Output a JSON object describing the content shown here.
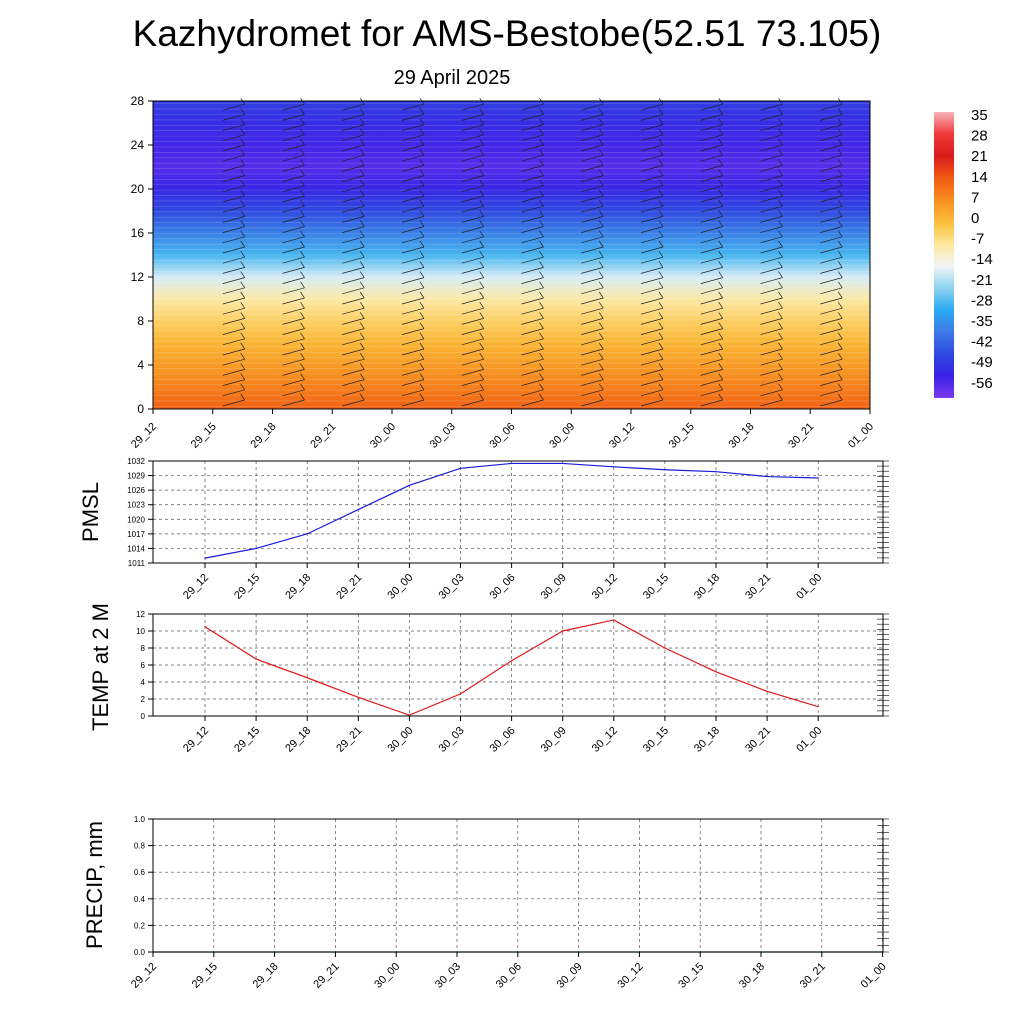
{
  "header": {
    "title": "Kazhydromet for AMS-Bestobe(52.51 73.105)",
    "date": "29 April 2025"
  },
  "chart_data": [
    {
      "type": "heatmap",
      "title": "",
      "xlabel": "",
      "ylabel": "",
      "x_ticks": [
        "29_12",
        "29_15",
        "29_18",
        "29_21",
        "30_00",
        "30_03",
        "30_06",
        "30_09",
        "30_12",
        "30_15",
        "30_18",
        "30_21",
        "01_00"
      ],
      "y_ticks": [
        "0",
        "4",
        "8",
        "12",
        "16",
        "20",
        "24",
        "28"
      ],
      "ylim": [
        0,
        28
      ],
      "colorbar": {
        "labels": [
          "35",
          "28",
          "21",
          "14",
          "7",
          "0",
          "-7",
          "-14",
          "-21",
          "-28",
          "-35",
          "-42",
          "-49",
          "-56"
        ],
        "colors": [
          "#f7b3b8",
          "#ef3a3a",
          "#d81a1a",
          "#f05a14",
          "#f78f1f",
          "#fbbd3a",
          "#fde79a",
          "#f3f6f8",
          "#8fd3f0",
          "#2aaaf0",
          "#3d7ae6",
          "#2f4ae0",
          "#3a22e6",
          "#7a3cf0"
        ]
      },
      "temperature_profile": {
        "heights": [
          0,
          2,
          4,
          6,
          8,
          10,
          12,
          14,
          16,
          18,
          20,
          22,
          24,
          26,
          28
        ],
        "values": [
          13,
          9,
          5,
          1,
          -3,
          -8,
          -16,
          -26,
          -34,
          -42,
          -48,
          -52,
          -50,
          -47,
          -44
        ]
      },
      "wind_barbs": true
    },
    {
      "type": "line",
      "title": "",
      "xlabel": "",
      "ylabel": "PMSL",
      "categories": [
        "29_12",
        "29_15",
        "29_18",
        "29_21",
        "30_00",
        "30_03",
        "30_06",
        "30_09",
        "30_12",
        "30_15",
        "30_18",
        "30_21",
        "01_00"
      ],
      "y_ticks": [
        "1032",
        "1029",
        "1026",
        "1023",
        "1020",
        "1017",
        "1014",
        "1011"
      ],
      "ylim": [
        1011,
        1032
      ],
      "series": [
        {
          "color": "#1a1adc",
          "values": [
            1012,
            1014,
            1017,
            1022,
            1027,
            1030.5,
            1031.5,
            1031.5,
            1030.8,
            1030.2,
            1029.8,
            1028.8,
            1028.5
          ]
        }
      ]
    },
    {
      "type": "line",
      "title": "",
      "xlabel": "",
      "ylabel": "TEMP at 2 M",
      "categories": [
        "29_12",
        "29_15",
        "29_18",
        "29_21",
        "30_00",
        "30_03",
        "30_06",
        "30_09",
        "30_12",
        "30_15",
        "30_18",
        "30_21",
        "01_00"
      ],
      "y_ticks": [
        "12",
        "10",
        "8",
        "6",
        "4",
        "2",
        "0"
      ],
      "ylim": [
        0,
        12
      ],
      "series": [
        {
          "color": "#e01818",
          "values": [
            10.5,
            6.7,
            4.5,
            2.2,
            0.1,
            2.6,
            6.5,
            10.0,
            11.3,
            8.0,
            5.2,
            2.9,
            1.1
          ]
        }
      ]
    },
    {
      "type": "line",
      "title": "",
      "xlabel": "",
      "ylabel": "PRECIP, mm",
      "categories": [
        "29_12",
        "29_15",
        "29_18",
        "29_21",
        "30_00",
        "30_03",
        "30_06",
        "30_09",
        "30_12",
        "30_15",
        "30_18",
        "30_21",
        "01_00"
      ],
      "y_ticks": [
        "1.0",
        "0.8",
        "0.6",
        "0.4",
        "0.2",
        "0.0"
      ],
      "ylim": [
        0,
        1
      ],
      "series": [
        {
          "color": "#0a7a2a",
          "values": [
            0,
            0,
            0,
            0,
            0,
            0,
            0,
            0,
            0,
            0,
            0,
            0,
            0
          ]
        }
      ]
    }
  ]
}
